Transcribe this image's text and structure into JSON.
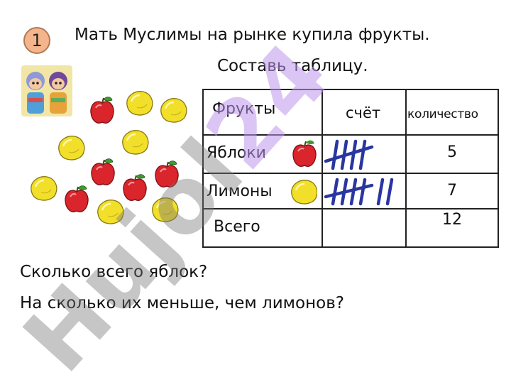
{
  "task_number": "1",
  "title": "Мать Муслимы на рынке купила фрукты.",
  "subtitle": "Составь таблицу.",
  "table": {
    "headers": [
      "Фрукты",
      "счёт",
      "количество"
    ],
    "rows": [
      {
        "label": "Яблоки",
        "count": "5",
        "tally": 5,
        "fruit_icon": "apple-icon"
      },
      {
        "label": "Лимоны",
        "count": "7",
        "tally": 7,
        "fruit_icon": "lemon-icon"
      }
    ],
    "total": {
      "label": "Всего",
      "count": "12"
    }
  },
  "questions": [
    "Сколько всего яблок?",
    "На сколько их меньше, чем лимонов?"
  ],
  "watermark": {
    "part1": "Hujol",
    "part2": "24"
  },
  "colors": {
    "apple": "#d9252b",
    "lemon": "#f2df2a",
    "tally": "#2a36a0",
    "badge": "#f5b58c"
  }
}
